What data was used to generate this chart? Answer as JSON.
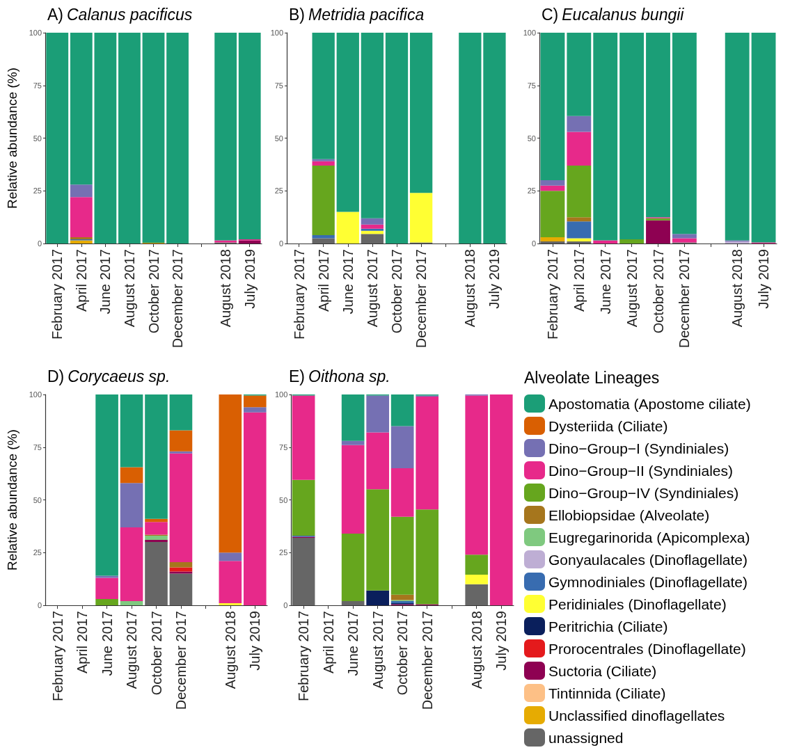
{
  "chart_data": [
    {
      "type": "bar",
      "stacked": true,
      "title": "A) Calanus pacificus",
      "ylabel": "Relative abundance (%)",
      "categories": [
        "February 2017",
        "April 2017",
        "June 2017",
        "August 2017",
        "October 2017",
        "December 2017",
        null,
        "August 2018",
        "July 2019"
      ],
      "ylim": [
        0,
        100
      ],
      "yticks": [
        0,
        25,
        50,
        75,
        100
      ],
      "grid": false,
      "legend": false,
      "series": [
        {
          "color": "#666666",
          "values": [
            null,
            null,
            null,
            null,
            null,
            null,
            null,
            0.5,
            null
          ]
        },
        {
          "color": "#e6ab02",
          "values": [
            null,
            1.5,
            null,
            null,
            0.3,
            null,
            null,
            null,
            null
          ]
        },
        {
          "color": "#8e0152",
          "values": [
            null,
            null,
            null,
            null,
            null,
            null,
            null,
            null,
            1.5
          ]
        },
        {
          "color": "#386cb0",
          "values": [
            null,
            0.5,
            null,
            null,
            null,
            null,
            null,
            null,
            null
          ]
        },
        {
          "color": "#a6761d",
          "values": [
            null,
            1,
            null,
            null,
            null,
            null,
            null,
            null,
            null
          ]
        },
        {
          "color": "#e7298a",
          "values": [
            null,
            19,
            null,
            null,
            null,
            null,
            null,
            1,
            0.5
          ]
        },
        {
          "color": "#7570b3",
          "values": [
            null,
            6,
            null,
            null,
            null,
            null,
            null,
            null,
            null
          ]
        },
        {
          "color": "#1b9e77",
          "values": [
            100,
            72,
            100,
            100,
            99.7,
            100,
            null,
            98.5,
            98
          ]
        }
      ]
    },
    {
      "type": "bar",
      "stacked": true,
      "title": "B) Metridia pacifica",
      "categories": [
        "February 2017",
        "April 2017",
        "June 2017",
        "August 2017",
        "October 2017",
        "December 2017",
        null,
        "August 2018",
        "July 2019"
      ],
      "ylim": [
        0,
        100
      ],
      "yticks": [
        0,
        25,
        50,
        75,
        100
      ],
      "grid": false,
      "legend": false,
      "series": [
        {
          "color": "#666666",
          "values": [
            null,
            2.5,
            null,
            4.5,
            null,
            0.5,
            null,
            null,
            null
          ]
        },
        {
          "color": "#ffff33",
          "values": [
            null,
            null,
            15,
            1.5,
            null,
            23.5,
            null,
            null,
            null
          ]
        },
        {
          "color": "#386cb0",
          "values": [
            null,
            1.5,
            null,
            1,
            null,
            null,
            null,
            null,
            null
          ]
        },
        {
          "color": "#66a61e",
          "values": [
            null,
            33,
            null,
            null,
            null,
            null,
            null,
            null,
            null
          ]
        },
        {
          "color": "#e7298a",
          "values": [
            null,
            2,
            null,
            2,
            null,
            null,
            null,
            null,
            null
          ]
        },
        {
          "color": "#7570b3",
          "values": [
            null,
            1,
            null,
            3,
            null,
            null,
            null,
            null,
            null
          ]
        },
        {
          "color": "#1b9e77",
          "values": [
            null,
            60,
            85,
            88,
            100,
            76,
            null,
            100,
            100
          ]
        }
      ]
    },
    {
      "type": "bar",
      "stacked": true,
      "title": "C) Eucalanus bungii",
      "categories": [
        "February 2017",
        "April 2017",
        "June 2017",
        "August 2017",
        "October 2017",
        "December 2017",
        null,
        "August 2018",
        "July 2019"
      ],
      "ylim": [
        0,
        100
      ],
      "yticks": [
        0,
        25,
        50,
        75,
        100
      ],
      "grid": false,
      "legend": false,
      "series": [
        {
          "color": "#666666",
          "values": [
            1,
            1,
            null,
            null,
            null,
            0.5,
            null,
            null,
            null
          ]
        },
        {
          "color": "#e6ab02",
          "values": [
            2,
            null,
            null,
            null,
            null,
            null,
            null,
            null,
            null
          ]
        },
        {
          "color": "#8e0152",
          "values": [
            null,
            null,
            null,
            null,
            11,
            null,
            null,
            null,
            null
          ]
        },
        {
          "color": "#ffff33",
          "values": [
            null,
            1.5,
            null,
            null,
            null,
            null,
            null,
            null,
            null
          ]
        },
        {
          "color": "#386cb0",
          "values": [
            null,
            8,
            null,
            null,
            null,
            null,
            null,
            null,
            null
          ]
        },
        {
          "color": "#beaed4",
          "values": [
            null,
            null,
            null,
            null,
            null,
            null,
            null,
            1,
            null
          ]
        },
        {
          "color": "#a6761d",
          "values": [
            null,
            2,
            null,
            null,
            null,
            null,
            null,
            null,
            null
          ]
        },
        {
          "color": "#66a61e",
          "values": [
            22,
            24.5,
            null,
            2,
            1,
            null,
            null,
            null,
            null
          ]
        },
        {
          "color": "#e7298a",
          "values": [
            2.5,
            16,
            1.5,
            null,
            0.5,
            2,
            null,
            null,
            0.5
          ]
        },
        {
          "color": "#7570b3",
          "values": [
            2.5,
            7.5,
            null,
            null,
            null,
            2,
            null,
            0.5,
            null
          ]
        },
        {
          "color": "#1b9e77",
          "values": [
            70,
            39.5,
            98.5,
            98,
            87.5,
            95.5,
            null,
            98.5,
            99.5
          ]
        }
      ]
    },
    {
      "type": "bar",
      "stacked": true,
      "title": "D) Corycaeus sp.",
      "ylabel": "Relative abundance (%)",
      "categories": [
        "February 2017",
        "April 2017",
        "June 2017",
        "August 2017",
        "October 2017",
        "December 2017",
        null,
        "August 2018",
        "July 2019"
      ],
      "ylim": [
        0,
        100
      ],
      "yticks": [
        0,
        25,
        50,
        75,
        100
      ],
      "grid": false,
      "legend": false,
      "series": [
        {
          "color": "#666666",
          "values": [
            null,
            null,
            null,
            null,
            30,
            15,
            null,
            null,
            null
          ]
        },
        {
          "color": "#8e0152",
          "values": [
            null,
            null,
            null,
            null,
            1,
            1,
            null,
            null,
            null
          ]
        },
        {
          "color": "#e41a1c",
          "values": [
            null,
            null,
            null,
            null,
            null,
            2,
            null,
            null,
            null
          ]
        },
        {
          "color": "#ffff33",
          "values": [
            null,
            null,
            null,
            null,
            null,
            null,
            null,
            1,
            null
          ]
        },
        {
          "color": "#7fc97f",
          "values": [
            null,
            null,
            null,
            2,
            2,
            null,
            null,
            null,
            null
          ]
        },
        {
          "color": "#a6761d",
          "values": [
            null,
            null,
            null,
            null,
            0.5,
            2.5,
            null,
            null,
            null
          ]
        },
        {
          "color": "#66a61e",
          "values": [
            null,
            null,
            3,
            null,
            null,
            null,
            null,
            null,
            null
          ]
        },
        {
          "color": "#e7298a",
          "values": [
            null,
            null,
            10,
            35,
            6,
            51.5,
            null,
            20,
            91.5
          ]
        },
        {
          "color": "#7570b3",
          "values": [
            null,
            null,
            1,
            21,
            null,
            1,
            null,
            4,
            2.5
          ]
        },
        {
          "color": "#d95f02",
          "values": [
            null,
            null,
            null,
            7.5,
            1.5,
            10,
            null,
            75,
            5.5
          ]
        },
        {
          "color": "#1b9e77",
          "values": [
            null,
            null,
            86,
            34.5,
            59,
            17,
            null,
            null,
            0.5
          ]
        }
      ]
    },
    {
      "type": "bar",
      "stacked": true,
      "title": "E) Oithona sp.",
      "categories": [
        "February 2017",
        "April 2017",
        "June 2017",
        "August 2017",
        "October 2017",
        "December 2017",
        null,
        "August 2018",
        "July 2019"
      ],
      "ylim": [
        0,
        100
      ],
      "yticks": [
        0,
        25,
        50,
        75,
        100
      ],
      "grid": false,
      "legend": "right",
      "legend_title": "Alveolate Lineages",
      "series": [
        {
          "name": "unassigned",
          "color": "#666666",
          "values": [
            32,
            null,
            2,
            null,
            null,
            null,
            null,
            10,
            null
          ]
        },
        {
          "name": "Unclassified dinoflagellates",
          "color": "#e6ab02",
          "values": [
            null,
            null,
            null,
            null,
            null,
            null,
            null,
            null,
            null
          ]
        },
        {
          "name": "Tintinnida (Ciliate)",
          "color": "#fdc086",
          "values": [
            null,
            null,
            null,
            null,
            null,
            null,
            null,
            null,
            null
          ]
        },
        {
          "name": "Suctoria (Ciliate)",
          "color": "#8e0152",
          "values": [
            0.5,
            null,
            null,
            null,
            0.5,
            0.5,
            null,
            null,
            null
          ]
        },
        {
          "name": "Prorocentrales (Dinoflagellate)",
          "color": "#e41a1c",
          "values": [
            null,
            null,
            null,
            null,
            null,
            null,
            null,
            null,
            null
          ]
        },
        {
          "name": "Peritrichia (Ciliate)",
          "color": "#0a1f5c",
          "values": [
            null,
            null,
            null,
            7,
            0.5,
            null,
            null,
            null,
            null
          ]
        },
        {
          "name": "Peridiniales (Dinoflagellate)",
          "color": "#ffff33",
          "values": [
            null,
            null,
            null,
            null,
            null,
            null,
            null,
            4.5,
            null
          ]
        },
        {
          "name": "Gymnodiniales (Dinoflagellate)",
          "color": "#386cb0",
          "values": [
            0.5,
            null,
            null,
            null,
            1,
            null,
            null,
            null,
            null
          ]
        },
        {
          "name": "Gonyaulacales (Dinoflagellate)",
          "color": "#beaed4",
          "values": [
            null,
            null,
            null,
            null,
            null,
            null,
            null,
            null,
            null
          ]
        },
        {
          "name": "Eugregarinorida (Apicomplexa)",
          "color": "#7fc97f",
          "values": [
            null,
            null,
            null,
            null,
            0.5,
            null,
            null,
            null,
            null
          ]
        },
        {
          "name": "Ellobiopsidae (Alveolate)",
          "color": "#a6761d",
          "values": [
            null,
            null,
            null,
            null,
            2.5,
            null,
            null,
            null,
            null
          ]
        },
        {
          "name": "Dino−Group−IV (Syndiniales)",
          "color": "#66a61e",
          "values": [
            26.5,
            null,
            32,
            48,
            37,
            45,
            null,
            9.5,
            null
          ]
        },
        {
          "name": "Dino−Group−II (Syndiniales)",
          "color": "#e7298a",
          "values": [
            40,
            null,
            42,
            27,
            23,
            53.5,
            null,
            75.5,
            100
          ]
        },
        {
          "name": "Dino−Group−I (Syndiniales)",
          "color": "#7570b3",
          "values": [
            null,
            null,
            2,
            17.5,
            20,
            0.5,
            null,
            0.5,
            null
          ]
        },
        {
          "name": "Dysteriida (Ciliate)",
          "color": "#d95f02",
          "values": [
            null,
            null,
            null,
            null,
            null,
            null,
            null,
            null,
            null
          ]
        },
        {
          "name": "Apostomatia (Apostome ciliate)",
          "color": "#1b9e77",
          "values": [
            0.5,
            null,
            22,
            0.5,
            15,
            0.5,
            null,
            null,
            null
          ]
        }
      ]
    }
  ]
}
